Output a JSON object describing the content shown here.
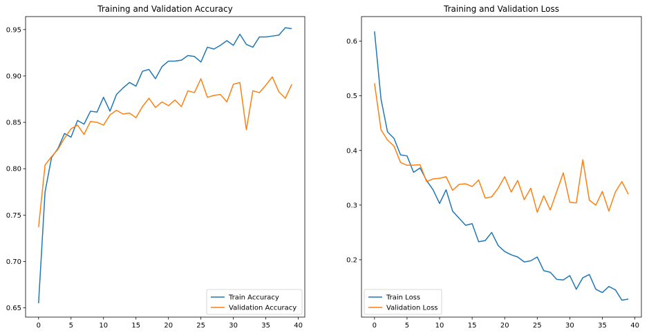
{
  "chart_data": [
    {
      "type": "line",
      "title": "Training and Validation Accuracy",
      "xlabel": "",
      "ylabel": "",
      "xlim": [
        -2,
        41
      ],
      "ylim": [
        0.64,
        0.964
      ],
      "xticks": [
        0,
        5,
        10,
        15,
        20,
        25,
        30,
        35,
        40
      ],
      "xtick_labels": [
        "0",
        "5",
        "10",
        "15",
        "20",
        "25",
        "30",
        "35",
        "40"
      ],
      "yticks": [
        0.65,
        0.7,
        0.75,
        0.8,
        0.85,
        0.9,
        0.95
      ],
      "ytick_labels": [
        "0.65",
        "0.70",
        "0.75",
        "0.80",
        "0.85",
        "0.90",
        "0.95"
      ],
      "grid": false,
      "legend_position": "lower-right",
      "x": [
        0,
        1,
        2,
        3,
        4,
        5,
        6,
        7,
        8,
        9,
        10,
        11,
        12,
        13,
        14,
        15,
        16,
        17,
        18,
        19,
        20,
        21,
        22,
        23,
        24,
        25,
        26,
        27,
        28,
        29,
        30,
        31,
        32,
        33,
        34,
        35,
        36,
        37,
        38,
        39
      ],
      "series": [
        {
          "name": "Train Accuracy",
          "color": "#1f77b4",
          "values": [
            0.655,
            0.775,
            0.812,
            0.822,
            0.838,
            0.834,
            0.852,
            0.848,
            0.862,
            0.861,
            0.877,
            0.862,
            0.88,
            0.887,
            0.893,
            0.889,
            0.905,
            0.907,
            0.897,
            0.91,
            0.916,
            0.916,
            0.917,
            0.922,
            0.921,
            0.915,
            0.931,
            0.929,
            0.933,
            0.938,
            0.933,
            0.945,
            0.934,
            0.931,
            0.942,
            0.942,
            0.943,
            0.944,
            0.952,
            0.951
          ]
        },
        {
          "name": "Validation Accuracy",
          "color": "#ff7f0e",
          "values": [
            0.737,
            0.804,
            0.813,
            0.821,
            0.833,
            0.843,
            0.847,
            0.837,
            0.851,
            0.85,
            0.847,
            0.858,
            0.863,
            0.859,
            0.86,
            0.855,
            0.867,
            0.876,
            0.866,
            0.872,
            0.868,
            0.874,
            0.867,
            0.884,
            0.882,
            0.897,
            0.877,
            0.879,
            0.88,
            0.872,
            0.891,
            0.893,
            0.842,
            0.884,
            0.882,
            0.89,
            0.899,
            0.883,
            0.876,
            0.891
          ]
        }
      ]
    },
    {
      "type": "line",
      "title": "Training and Validation Loss",
      "xlabel": "",
      "ylabel": "",
      "xlim": [
        -2,
        41
      ],
      "ylim": [
        0.095,
        0.645
      ],
      "xticks": [
        0,
        5,
        10,
        15,
        20,
        25,
        30,
        35,
        40
      ],
      "xtick_labels": [
        "0",
        "5",
        "10",
        "15",
        "20",
        "25",
        "30",
        "35",
        "40"
      ],
      "yticks": [
        0.2,
        0.3,
        0.4,
        0.5,
        0.6
      ],
      "ytick_labels": [
        "0.2",
        "0.3",
        "0.4",
        "0.5",
        "0.6"
      ],
      "grid": false,
      "legend_position": "lower-left",
      "x": [
        0,
        1,
        2,
        3,
        4,
        5,
        6,
        7,
        8,
        9,
        10,
        11,
        12,
        13,
        14,
        15,
        16,
        17,
        18,
        19,
        20,
        21,
        22,
        23,
        24,
        25,
        26,
        27,
        28,
        29,
        30,
        31,
        32,
        33,
        34,
        35,
        36,
        37,
        38,
        39
      ],
      "series": [
        {
          "name": "Train Loss",
          "color": "#1f77b4",
          "values": [
            0.618,
            0.494,
            0.434,
            0.422,
            0.392,
            0.39,
            0.36,
            0.368,
            0.345,
            0.328,
            0.303,
            0.328,
            0.289,
            0.276,
            0.263,
            0.266,
            0.233,
            0.235,
            0.25,
            0.226,
            0.215,
            0.209,
            0.205,
            0.196,
            0.198,
            0.205,
            0.18,
            0.177,
            0.164,
            0.163,
            0.171,
            0.146,
            0.167,
            0.173,
            0.146,
            0.14,
            0.151,
            0.145,
            0.126,
            0.128
          ]
        },
        {
          "name": "Validation Loss",
          "color": "#ff7f0e",
          "values": [
            0.523,
            0.438,
            0.419,
            0.408,
            0.378,
            0.373,
            0.373,
            0.374,
            0.343,
            0.348,
            0.349,
            0.352,
            0.327,
            0.338,
            0.339,
            0.334,
            0.346,
            0.313,
            0.315,
            0.331,
            0.352,
            0.324,
            0.345,
            0.31,
            0.331,
            0.287,
            0.317,
            0.291,
            0.325,
            0.359,
            0.305,
            0.304,
            0.383,
            0.309,
            0.3,
            0.325,
            0.289,
            0.324,
            0.343,
            0.32
          ]
        }
      ]
    }
  ]
}
